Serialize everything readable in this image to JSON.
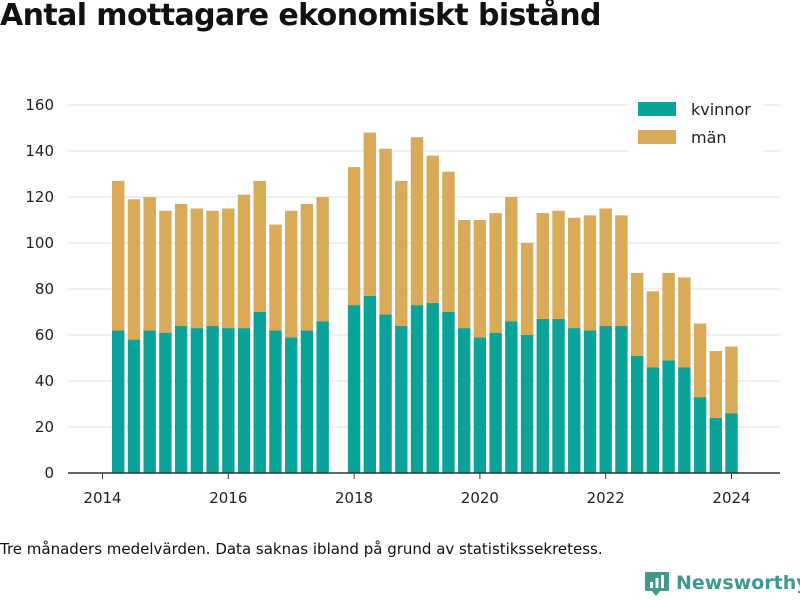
{
  "title": "Antal mottagare ekonomiskt bistånd",
  "note": "Tre månaders medelvärden. Data saknas ibland på grund av statistikssekretess.",
  "brand": "Newsworthy",
  "colors": {
    "kvinnor": "#0aa39a",
    "man": "#d9aa57",
    "grid": "#e0e0e0",
    "axis": "#333333",
    "brand": "#3f9a8c"
  },
  "chart_data": {
    "type": "bar",
    "stacked": true,
    "legend_position": "top-right",
    "grid": true,
    "ylim": [
      0,
      160
    ],
    "yticks": [
      0,
      20,
      40,
      60,
      80,
      100,
      120,
      140,
      160
    ],
    "xticks": [
      "2014",
      "2016",
      "2018",
      "2020",
      "2022",
      "2024"
    ],
    "x": [
      "2014-Q2",
      "2014-Q3",
      "2014-Q4",
      "2015-Q1",
      "2015-Q2",
      "2015-Q3",
      "2015-Q4",
      "2016-Q1",
      "2016-Q2",
      "2016-Q3",
      "2016-Q4",
      "2017-Q1",
      "2017-Q2",
      "2017-Q3",
      "2017-Q4",
      "2018-Q1",
      "2018-Q2",
      "2018-Q3",
      "2018-Q4",
      "2019-Q1",
      "2019-Q2",
      "2019-Q3",
      "2019-Q4",
      "2020-Q1",
      "2020-Q2",
      "2020-Q3",
      "2020-Q4",
      "2021-Q1",
      "2021-Q2",
      "2021-Q3",
      "2021-Q4",
      "2022-Q1",
      "2022-Q2",
      "2022-Q3",
      "2022-Q4",
      "2023-Q1",
      "2023-Q2",
      "2023-Q3",
      "2023-Q4",
      "2024-Q1"
    ],
    "series": [
      {
        "name": "kvinnor",
        "values": [
          62,
          58,
          62,
          61,
          64,
          63,
          64,
          63,
          63,
          70,
          62,
          59,
          62,
          66,
          null,
          73,
          77,
          69,
          64,
          73,
          74,
          70,
          63,
          59,
          61,
          66,
          60,
          67,
          67,
          63,
          62,
          64,
          64,
          51,
          46,
          49,
          46,
          33,
          24,
          26
        ]
      },
      {
        "name": "män",
        "values": [
          65,
          61,
          58,
          53,
          53,
          52,
          50,
          52,
          58,
          57,
          46,
          55,
          55,
          54,
          null,
          60,
          71,
          72,
          63,
          73,
          64,
          61,
          47,
          51,
          52,
          54,
          40,
          46,
          47,
          48,
          50,
          51,
          48,
          36,
          33,
          38,
          39,
          32,
          29,
          29
        ]
      }
    ]
  }
}
